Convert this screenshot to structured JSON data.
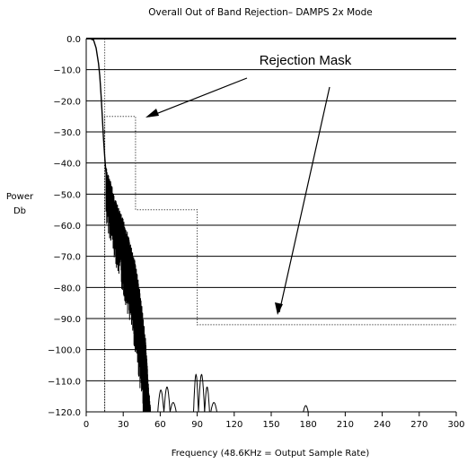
{
  "chart_data": {
    "type": "line",
    "title": "Overall Out of Band Rejection– DAMPS 2x Mode",
    "xlabel": "Frequency (48.6KHz = Output Sample Rate)",
    "ylabel_line1": "Power",
    "ylabel_line2": "Db",
    "xlim": [
      0,
      300
    ],
    "ylim": [
      -120,
      0
    ],
    "x_ticks": [
      "0",
      "30",
      "60",
      "90",
      "120",
      "150",
      "180",
      "210",
      "240",
      "270",
      "300"
    ],
    "y_ticks": [
      "0.0",
      "−10.0",
      "−20.0",
      "−30.0",
      "−40.0",
      "−50.0",
      "−60.0",
      "−70.0",
      "−80.0",
      "−90.0",
      "−100.0",
      "−110.0",
      "−120.0"
    ],
    "grid": "horizontal",
    "annotation": "Rejection Mask",
    "series": [
      {
        "style": "dotted",
        "x": [
          0,
          15,
          15,
          15,
          40,
          40,
          70,
          70,
          90,
          90,
          300
        ],
        "y": [
          0,
          0,
          -120,
          -25,
          -25,
          -55,
          -55,
          -55,
          -55,
          -92,
          -92
        ]
      },
      {
        "style": "solid",
        "x": [
          0,
          3,
          6,
          8,
          10,
          11,
          12,
          13,
          14,
          15,
          16,
          17
        ],
        "y": [
          0,
          0,
          -0.5,
          -3,
          -8,
          -12,
          -18,
          -25,
          -32,
          -38,
          -43,
          -46
        ]
      }
    ],
    "noise_envelope": {
      "x": [
        16,
        20,
        24,
        28,
        32,
        36,
        40,
        44,
        48,
        50,
        52
      ],
      "top": [
        -41,
        -46,
        -52,
        -56,
        -60,
        -66,
        -72,
        -82,
        -96,
        -108,
        -118
      ],
      "bottom": [
        -50,
        -56,
        -63,
        -70,
        -76,
        -83,
        -92,
        -104,
        -118,
        -120,
        -120
      ]
    },
    "sidelobes": [
      [
        58,
        63,
        -113
      ],
      [
        63,
        68,
        -112
      ],
      [
        68,
        73,
        -117
      ],
      [
        87,
        91,
        -108
      ],
      [
        91,
        96,
        -108
      ],
      [
        96,
        100,
        -112
      ],
      [
        101,
        106,
        -117
      ],
      [
        176,
        180,
        -118
      ]
    ]
  }
}
